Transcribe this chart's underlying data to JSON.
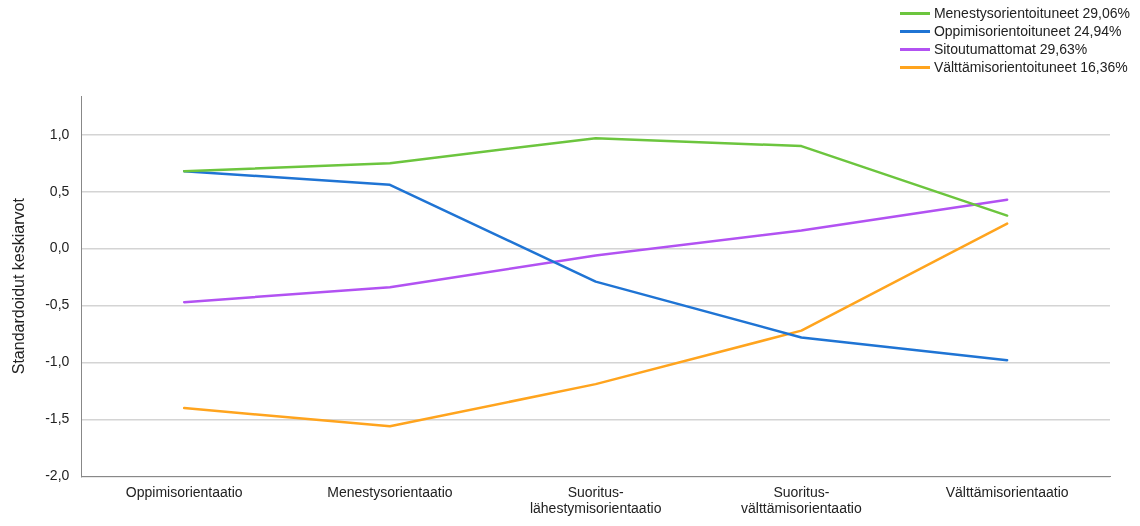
{
  "chart_data": {
    "type": "line",
    "ylabel": "Standardoidut keskiarvot",
    "categories": [
      "Oppimisorientaatio",
      "Menestysorientaatio",
      "Suoritus-lähestymisorientaatio",
      "Suoritus-välttämisorientaatio",
      "Välttämisorientaatio"
    ],
    "series": [
      {
        "name": "Menestysorientoituneet 29,06%",
        "color": "#6cc53e",
        "values": [
          0.68,
          0.75,
          0.97,
          0.9,
          0.29
        ]
      },
      {
        "name": "Oppimisorientoituneet 24,94%",
        "color": "#1f74d4",
        "values": [
          0.68,
          0.56,
          -0.29,
          -0.78,
          -0.98
        ]
      },
      {
        "name": "Sitoutumattomat 29,63%",
        "color": "#b252f2",
        "values": [
          -0.47,
          -0.34,
          -0.06,
          0.16,
          0.43
        ]
      },
      {
        "name": "Välttämisorientoituneet 16,36%",
        "color": "#ffa41e",
        "values": [
          -1.4,
          -1.56,
          -1.19,
          -0.72,
          0.22
        ]
      }
    ],
    "ylim": [
      -2,
      1.34
    ],
    "yticks": [
      {
        "value": -2,
        "label": "-2,0"
      },
      {
        "value": -1.5,
        "label": "-1,5"
      },
      {
        "value": -1,
        "label": "-1,0"
      },
      {
        "value": -0.5,
        "label": "-0,5"
      },
      {
        "value": 0,
        "label": "0,0"
      },
      {
        "value": 0.5,
        "label": "0,5"
      },
      {
        "value": 1,
        "label": "1,0"
      }
    ],
    "grid": "y",
    "legend": "top right",
    "marker": "none",
    "line_style": "solid"
  }
}
